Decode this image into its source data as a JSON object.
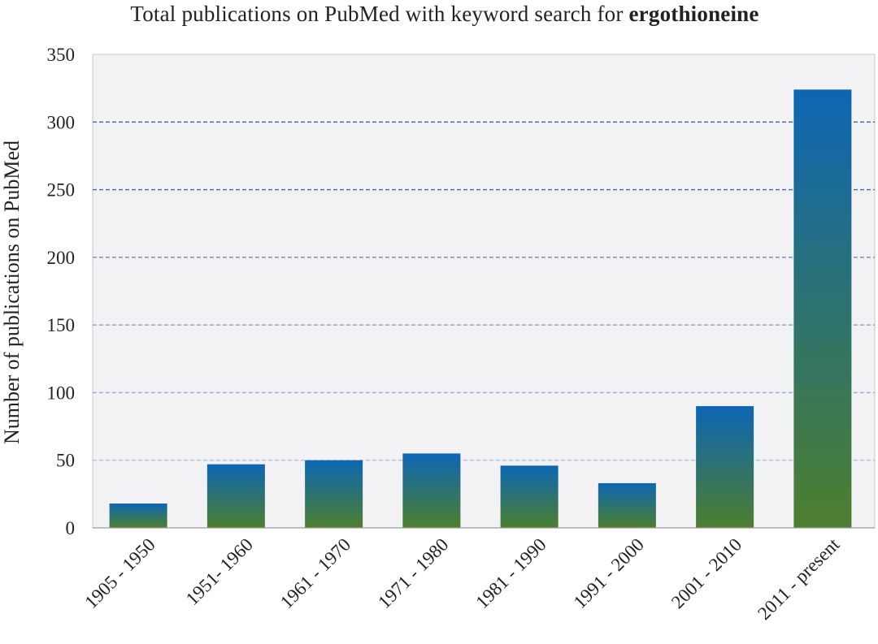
{
  "chart_data": {
    "type": "bar",
    "title_prefix": "Total publications on PubMed with keyword search for ",
    "title_bold": "ergothioneine",
    "ylabel": "Number of publications on PubMed",
    "xlabel": "",
    "categories": [
      "1905 - 1950",
      "1951- 1960",
      "1961 - 1970",
      "1971 - 1980",
      "1981 - 1990",
      "1991 - 2000",
      "2001 - 2010",
      "2011 - present"
    ],
    "values": [
      18,
      47,
      50,
      55,
      46,
      33,
      90,
      324
    ],
    "ylim": [
      0,
      350
    ],
    "yticks": [
      0,
      50,
      100,
      150,
      200,
      250,
      300,
      350
    ],
    "grid": true,
    "grid_style": "dashed horizontal",
    "legend": "none",
    "colors": {
      "bar_top": "#0d66b3",
      "bar_bottom": "#4d7f2e",
      "plot_background": "#f2f1f3",
      "grid_light": "#b9d3f0",
      "grid_dark": "#2d5aa0"
    }
  }
}
